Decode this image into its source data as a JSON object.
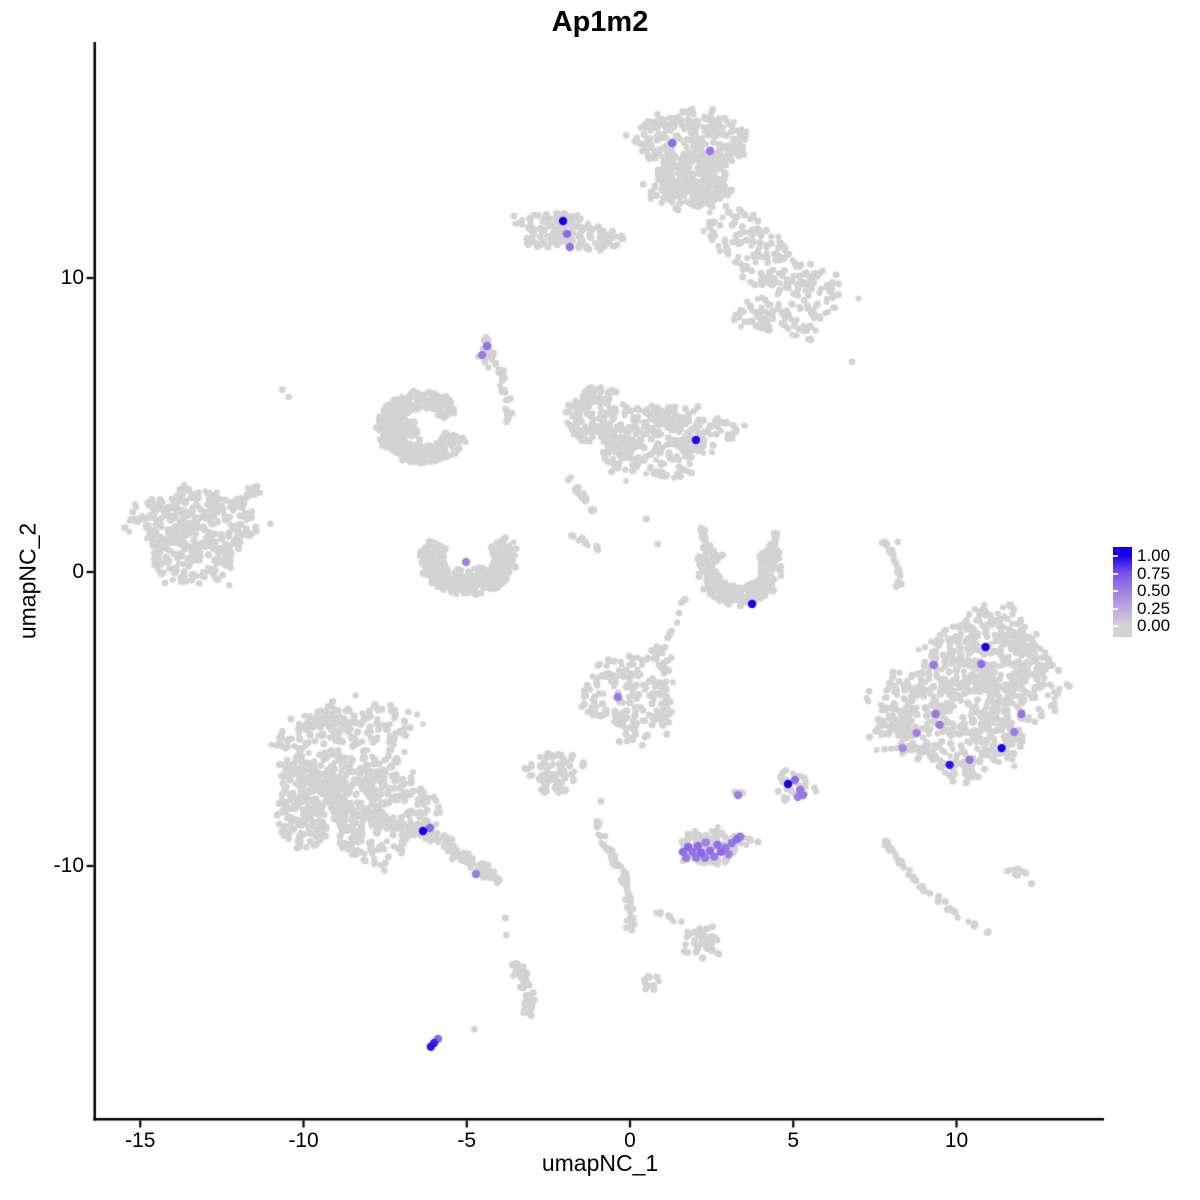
{
  "chart_data": {
    "type": "scatter",
    "title": "Ap1m2",
    "xlabel": "umapNC_1",
    "ylabel": "umapNC_2",
    "xlim": [
      -16.35,
      14.35
    ],
    "ylim": [
      -18.6,
      17.95
    ],
    "grid": false,
    "x_ticks": [
      -15,
      -10,
      -5,
      0,
      5,
      10
    ],
    "x_tick_labels": [
      "-15",
      "-10",
      "-5",
      "0",
      "5",
      "10"
    ],
    "y_ticks": [
      10,
      0,
      -10
    ],
    "y_tick_labels": [
      "10",
      "0",
      "-10"
    ],
    "legend": {
      "position": "right",
      "tick_labels": [
        "1.00",
        "0.75",
        "0.50",
        "0.25",
        "0.00"
      ],
      "low_color": "#D3D3D3",
      "high_color": "#1500E8"
    },
    "gradient_stops": [
      "#D3D3D3",
      "#BCA6DD",
      "#9F7FE4",
      "#7752EA",
      "#1500E8"
    ],
    "background_points": {
      "color": "#D3D3D3",
      "clusters": [
        {
          "type": "blob",
          "cx": 1.9,
          "cy": 14.2,
          "rx": 1.5,
          "ry": 1.65,
          "n": 480
        },
        {
          "type": "blob",
          "cx": 1.7,
          "cy": 12.85,
          "rx": 1.35,
          "ry": 0.55,
          "n": 70
        },
        {
          "type": "blob",
          "cx": 3.1,
          "cy": 11.7,
          "rx": 0.9,
          "ry": 0.8,
          "n": 60
        },
        {
          "type": "blob",
          "cx": 4.4,
          "cy": 10.4,
          "rx": 1.05,
          "ry": 0.85,
          "n": 85
        },
        {
          "type": "blob",
          "cx": 4.1,
          "cy": 8.8,
          "rx": 0.85,
          "ry": 0.65,
          "n": 55
        },
        {
          "type": "blob",
          "cx": 5.6,
          "cy": 9.5,
          "rx": 0.95,
          "ry": 0.8,
          "n": 70
        },
        {
          "type": "blob",
          "cx": 5.3,
          "cy": 8.3,
          "rx": 0.55,
          "ry": 0.45,
          "n": 20
        },
        {
          "type": "blob",
          "cx": -2.35,
          "cy": 11.65,
          "rx": 1.2,
          "ry": 0.62,
          "n": 120
        },
        {
          "type": "blob",
          "cx": -0.95,
          "cy": 11.3,
          "rx": 0.9,
          "ry": 0.38,
          "n": 45
        },
        {
          "type": "strand",
          "x1": -4.42,
          "y1": 7.7,
          "x2": -3.78,
          "y2": 4.95,
          "w": 0.14,
          "n": 34,
          "bow": 0.25
        },
        {
          "type": "blob",
          "cx": -4.45,
          "cy": 7.45,
          "rx": 0.3,
          "ry": 0.55,
          "n": 16
        },
        {
          "type": "ring",
          "cx": -6.35,
          "cy": 4.9,
          "rx": 1.4,
          "ry": 1.25,
          "w": 0.5,
          "a1": 30,
          "a2": 345,
          "n": 400
        },
        {
          "type": "blob",
          "cx": -6.9,
          "cy": 4.75,
          "rx": 0.65,
          "ry": 0.55,
          "n": 40
        },
        {
          "type": "blob",
          "cx": 0.8,
          "cy": 4.55,
          "rx": 2.05,
          "ry": 1.25,
          "n": 400
        },
        {
          "type": "ring",
          "cx": -0.9,
          "cy": 5.3,
          "rx": 1.15,
          "ry": 1.0,
          "w": 0.55,
          "a1": 60,
          "a2": 255,
          "n": 100
        },
        {
          "type": "strand",
          "x1": -1.9,
          "y1": 3.3,
          "x2": -1.15,
          "y2": 2.05,
          "w": 0.12,
          "n": 20,
          "bow": 0
        },
        {
          "type": "strand",
          "x1": -1.85,
          "y1": 1.3,
          "x2": -0.95,
          "y2": 0.75,
          "w": 0.1,
          "n": 13,
          "bow": 0
        },
        {
          "type": "ring",
          "cx": -4.95,
          "cy": 0.5,
          "rx": 1.5,
          "ry": 1.3,
          "w": 0.5,
          "a1": 150,
          "a2": 395,
          "n": 310
        },
        {
          "type": "blob",
          "cx": -4.9,
          "cy": -0.2,
          "rx": 0.75,
          "ry": 0.4,
          "n": 28
        },
        {
          "type": "blob",
          "cx": -13.35,
          "cy": 1.3,
          "rx": 1.75,
          "ry": 1.6,
          "n": 400
        },
        {
          "type": "strand",
          "x1": -12.15,
          "y1": 2.3,
          "x2": -11.3,
          "y2": 2.95,
          "w": 0.2,
          "n": 28,
          "bow": 0
        },
        {
          "type": "ring",
          "cx": 3.35,
          "cy": 0.15,
          "rx": 1.3,
          "ry": 1.3,
          "w": 0.5,
          "a1": 140,
          "a2": 400,
          "n": 270
        },
        {
          "type": "strand",
          "x1": 2.15,
          "y1": 1.5,
          "x2": 2.45,
          "y2": 0.7,
          "w": 0.13,
          "n": 16,
          "bow": 0
        },
        {
          "type": "strand",
          "x1": 4.5,
          "y1": 1.45,
          "x2": 4.33,
          "y2": 0.6,
          "w": 0.13,
          "n": 16,
          "bow": 0
        },
        {
          "type": "strand",
          "x1": 1.65,
          "y1": -0.9,
          "x2": 0.95,
          "y2": -2.45,
          "w": 0.1,
          "n": 9,
          "bow": 0.15
        },
        {
          "type": "blob",
          "cx": -8.9,
          "cy": -6.5,
          "rx": 1.85,
          "ry": 1.95,
          "n": 360
        },
        {
          "type": "blob",
          "cx": -7.7,
          "cy": -8.2,
          "rx": 1.65,
          "ry": 1.6,
          "n": 300
        },
        {
          "type": "blob",
          "cx": -9.7,
          "cy": -7.9,
          "rx": 1.25,
          "ry": 1.45,
          "n": 240
        },
        {
          "type": "blob",
          "cx": -8.3,
          "cy": -5.0,
          "rx": 1.95,
          "ry": 0.65,
          "n": 70
        },
        {
          "type": "strand",
          "x1": -6.4,
          "y1": -8.7,
          "x2": -3.95,
          "y2": -10.55,
          "w": 0.28,
          "n": 110,
          "bow": 0
        },
        {
          "type": "blob",
          "cx": 0.05,
          "cy": -4.1,
          "rx": 1.38,
          "ry": 1.55,
          "n": 220
        },
        {
          "type": "blob",
          "cx": -2.3,
          "cy": -6.8,
          "rx": 0.82,
          "ry": 0.72,
          "n": 90
        },
        {
          "type": "blob",
          "cx": 2.5,
          "cy": -9.3,
          "rx": 1.02,
          "ry": 0.62,
          "n": 110
        },
        {
          "type": "blob",
          "cx": 5.05,
          "cy": -7.35,
          "rx": 0.58,
          "ry": 0.52,
          "n": 36
        },
        {
          "type": "blob",
          "cx": 3.33,
          "cy": -7.52,
          "rx": 0.2,
          "ry": 0.16,
          "n": 5
        },
        {
          "type": "blob",
          "cx": 10.9,
          "cy": -2.9,
          "rx": 1.95,
          "ry": 1.6,
          "n": 430
        },
        {
          "type": "blob",
          "cx": 9.9,
          "cy": -5.2,
          "rx": 2.2,
          "ry": 1.65,
          "n": 440
        },
        {
          "type": "blob",
          "cx": 8.2,
          "cy": -4.5,
          "rx": 0.85,
          "ry": 1.25,
          "n": 60
        },
        {
          "type": "blob",
          "cx": 12.5,
          "cy": -4.0,
          "rx": 0.85,
          "ry": 1.25,
          "n": 55
        },
        {
          "type": "strand",
          "x1": 7.75,
          "y1": 1.05,
          "x2": 8.2,
          "y2": -0.6,
          "w": 0.1,
          "n": 26,
          "bow": 0.18
        },
        {
          "type": "strand",
          "x1": -0.95,
          "y1": -8.9,
          "x2": 0.0,
          "y2": -12.2,
          "w": 0.2,
          "n": 60,
          "bow": 0.3
        },
        {
          "type": "strand",
          "x1": -0.9,
          "y1": -7.75,
          "x2": -1.0,
          "y2": -8.85,
          "w": 0.08,
          "n": 7,
          "bow": 0
        },
        {
          "type": "blob",
          "cx": 2.2,
          "cy": -12.6,
          "rx": 0.65,
          "ry": 0.58,
          "n": 45
        },
        {
          "type": "strand",
          "x1": 0.7,
          "y1": -11.5,
          "x2": 1.6,
          "y2": -11.95,
          "w": 0.08,
          "n": 8,
          "bow": 0
        },
        {
          "type": "blob",
          "cx": 0.6,
          "cy": -13.95,
          "rx": 0.28,
          "ry": 0.26,
          "n": 12
        },
        {
          "type": "strand",
          "x1": -3.55,
          "y1": -13.3,
          "x2": -3.15,
          "y2": -15.2,
          "w": 0.26,
          "n": 58,
          "bow": 0.2
        },
        {
          "type": "strand",
          "x1": 7.8,
          "y1": -9.15,
          "x2": 11.0,
          "y2": -12.3,
          "w": 0.12,
          "n": 46,
          "bow": -0.3
        },
        {
          "type": "blob",
          "cx": 11.85,
          "cy": -10.2,
          "rx": 0.3,
          "ry": 0.22,
          "n": 9
        }
      ],
      "singles": [
        [
          -10.65,
          6.2
        ],
        [
          -10.45,
          5.95
        ],
        [
          0.5,
          1.8
        ],
        [
          0.85,
          0.95
        ],
        [
          5.1,
          8.05
        ],
        [
          6.8,
          7.15
        ],
        [
          7.0,
          9.3
        ],
        [
          -4.77,
          -15.55
        ],
        [
          -3.82,
          -11.77
        ],
        [
          -3.79,
          -12.35
        ],
        [
          8.2,
          1.02
        ],
        [
          12.3,
          -10.6
        ]
      ]
    },
    "expressing_points": [
      [
        1.29,
        14.59,
        0.6
      ],
      [
        2.45,
        14.32,
        0.55
      ],
      [
        -2.05,
        11.94,
        1.0
      ],
      [
        -1.93,
        11.5,
        0.62
      ],
      [
        -1.84,
        11.05,
        0.58
      ],
      [
        -4.38,
        7.69,
        0.58
      ],
      [
        -4.53,
        7.38,
        0.52
      ],
      [
        2.02,
        4.49,
        0.97
      ],
      [
        -5.02,
        0.34,
        0.48
      ],
      [
        3.74,
        -1.09,
        1.0
      ],
      [
        -0.37,
        -4.25,
        0.52
      ],
      [
        -6.34,
        -8.81,
        1.0
      ],
      [
        -6.13,
        -8.71,
        0.62
      ],
      [
        -4.72,
        -10.27,
        0.5
      ],
      [
        3.31,
        -7.59,
        0.5
      ],
      [
        4.84,
        -7.21,
        1.0
      ],
      [
        5.05,
        -7.07,
        0.62
      ],
      [
        5.21,
        -7.41,
        0.55
      ],
      [
        5.14,
        -7.65,
        0.5
      ],
      [
        5.3,
        -7.59,
        0.55
      ],
      [
        1.62,
        -9.52,
        0.6
      ],
      [
        1.72,
        -9.72,
        0.55
      ],
      [
        1.78,
        -9.35,
        0.62
      ],
      [
        1.92,
        -9.52,
        0.58
      ],
      [
        2.02,
        -9.72,
        0.55
      ],
      [
        2.08,
        -9.32,
        0.6
      ],
      [
        2.18,
        -9.55,
        0.65
      ],
      [
        2.3,
        -9.72,
        0.55
      ],
      [
        2.32,
        -9.2,
        0.5
      ],
      [
        2.45,
        -9.48,
        0.6
      ],
      [
        2.58,
        -9.68,
        0.55
      ],
      [
        2.68,
        -9.28,
        0.58
      ],
      [
        2.78,
        -9.52,
        0.62
      ],
      [
        2.92,
        -9.38,
        0.55
      ],
      [
        3.02,
        -9.6,
        0.5
      ],
      [
        3.12,
        -9.22,
        0.55
      ],
      [
        3.28,
        -9.08,
        0.6
      ],
      [
        3.38,
        -9.0,
        0.55
      ],
      [
        10.89,
        -2.55,
        1.0
      ],
      [
        9.3,
        -3.16,
        0.55
      ],
      [
        10.76,
        -3.13,
        0.6
      ],
      [
        9.36,
        -4.83,
        0.55
      ],
      [
        9.48,
        -5.2,
        0.55
      ],
      [
        8.78,
        -5.48,
        0.5
      ],
      [
        8.35,
        -5.99,
        0.45
      ],
      [
        11.99,
        -4.83,
        0.55
      ],
      [
        11.77,
        -5.44,
        0.5
      ],
      [
        10.4,
        -6.39,
        0.55
      ],
      [
        11.38,
        -5.99,
        1.0
      ],
      [
        9.79,
        -6.56,
        0.95
      ],
      [
        -6.1,
        -16.15,
        0.95
      ],
      [
        -6.0,
        -16.02,
        0.9
      ],
      [
        -5.88,
        -15.88,
        0.62
      ]
    ]
  }
}
